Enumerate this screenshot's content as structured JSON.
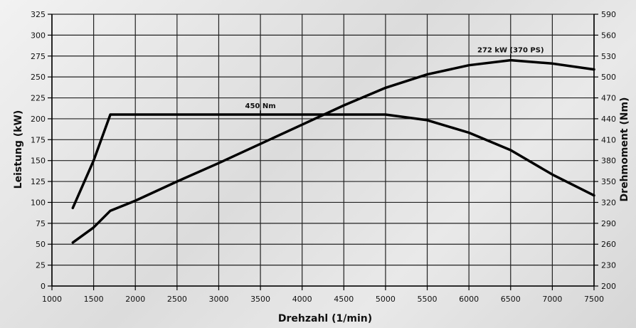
{
  "chart_data": {
    "type": "line",
    "title": "",
    "xlabel": "Drehzahl (1/min)",
    "ylabel_left": "Leistung (kW)",
    "ylabel_right": "Drehmoment (Nm)",
    "xlim": [
      1000,
      7500
    ],
    "ylim_left": [
      0,
      325
    ],
    "ylim_right": [
      200,
      590
    ],
    "x_ticks": [
      "1000",
      "1500",
      "2000",
      "2500",
      "3000",
      "3500",
      "4000",
      "4500",
      "5000",
      "5500",
      "6000",
      "6500",
      "7000",
      "7500"
    ],
    "y_ticks_left": [
      "0",
      "25",
      "50",
      "75",
      "100",
      "125",
      "150",
      "175",
      "200",
      "225",
      "250",
      "275",
      "300",
      "325"
    ],
    "y_ticks_right": [
      "200",
      "230",
      "260",
      "290",
      "320",
      "350",
      "380",
      "410",
      "440",
      "470",
      "500",
      "530",
      "560",
      "590"
    ],
    "grid": true,
    "series": [
      {
        "axis": "left",
        "x": [
          1250,
          1500,
          1700,
          2000,
          2500,
          3000,
          3500,
          4000,
          4500,
          5000,
          5500,
          6000,
          6500,
          7000,
          7500
        ],
        "values": [
          52,
          70,
          90,
          102,
          125,
          147,
          170,
          193,
          216,
          237,
          253,
          264,
          270,
          266,
          259
        ]
      },
      {
        "axis": "right",
        "x": [
          1250,
          1500,
          1700,
          2000,
          3000,
          4000,
          5000,
          5500,
          6000,
          6500,
          7000,
          7500
        ],
        "values": [
          312,
          380,
          446,
          446,
          446,
          446,
          446,
          438,
          420,
          395,
          360,
          330
        ]
      }
    ],
    "annotations": [
      {
        "text": "450 Nm",
        "x": 3500,
        "axis": "right",
        "y": 446
      },
      {
        "text": "272 kW (370 PS)",
        "x": 6500,
        "axis": "left",
        "y": 272
      }
    ]
  }
}
